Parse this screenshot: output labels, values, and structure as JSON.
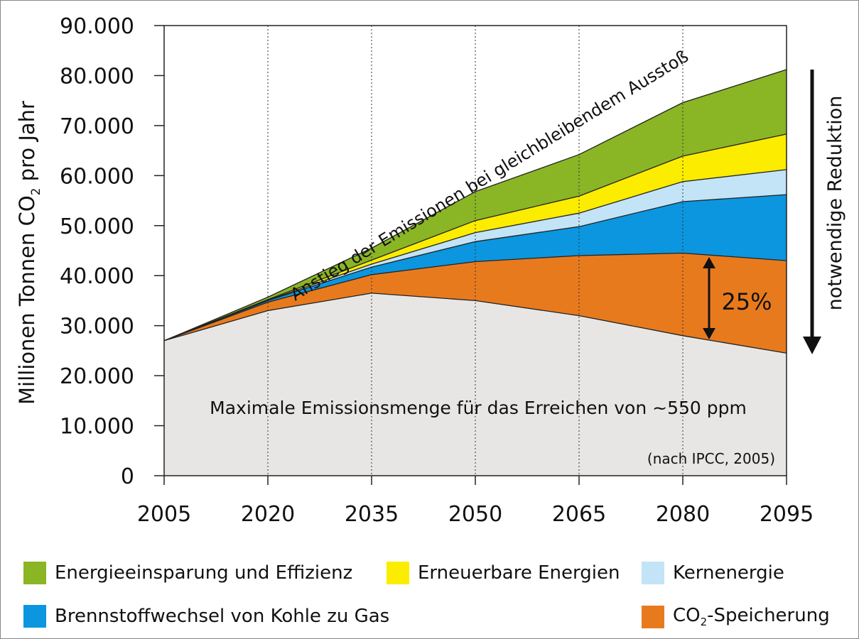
{
  "chart_data": {
    "type": "area",
    "ylabel_main": "Millionen Tonnen CO",
    "ylabel_sub": "2",
    "ylabel_tail": " pro Jahr",
    "ylim": [
      0,
      90000
    ],
    "yticks": [
      0,
      10000,
      20000,
      30000,
      40000,
      50000,
      60000,
      70000,
      80000,
      90000
    ],
    "ytick_labels": [
      "0",
      "10.000",
      "20.000",
      "30.000",
      "40.000",
      "50.000",
      "60.000",
      "70.000",
      "80.000",
      "90.000"
    ],
    "x": [
      2005,
      2020,
      2035,
      2050,
      2065,
      2080,
      2095
    ],
    "xtick_labels": [
      "2005",
      "2020",
      "2035",
      "2050",
      "2065",
      "2080",
      "2095"
    ],
    "xlim": [
      2005,
      2095
    ],
    "grid": "dotted vertical lines at 2020, 2035, 2050, 2065, 2080",
    "base": {
      "label": "Maximale Emissionsmenge für das Erreichen von ~550 ppm",
      "color": "#e8e6e4",
      "values": [
        27000,
        33000,
        36500,
        35000,
        32000,
        28000,
        24500
      ]
    },
    "series": [
      {
        "name": "CO₂-Speicherung",
        "color": "#e87a1e",
        "values": [
          0,
          1700,
          3700,
          7800,
          12000,
          16500,
          18500
        ]
      },
      {
        "name": "Brennstoffwechsel von Kohle zu Gas",
        "color": "#0b96df",
        "values": [
          0,
          300,
          1500,
          4000,
          5800,
          10300,
          13200
        ]
      },
      {
        "name": "Kernenergie",
        "color": "#c3e3f6",
        "values": [
          0,
          100,
          600,
          1800,
          2700,
          4000,
          5000
        ]
      },
      {
        "name": "Erneuerbare Energien",
        "color": "#fbec00",
        "values": [
          0,
          100,
          800,
          2400,
          3400,
          5100,
          7100
        ]
      },
      {
        "name": "Energieeinsparung und Effizienz",
        "color": "#8ab525",
        "values": [
          0,
          500,
          2400,
          5800,
          8300,
          10700,
          12900
        ]
      }
    ],
    "annotations": {
      "trend_text": "Anstieg der Emissionen bei gleichbleibendem Ausstoß",
      "percent": "25%",
      "reduction": "notwendige Reduktion",
      "source": "(nach IPCC, 2005)"
    },
    "legend": "bottom"
  },
  "legend": {
    "items": [
      {
        "label": "Energieeinsparung und Effizienz",
        "color": "#8ab525"
      },
      {
        "label": "Erneuerbare Energien",
        "color": "#fbec00"
      },
      {
        "label": "Kernenergie",
        "color": "#c3e3f6"
      },
      {
        "label": "Brennstoffwechsel von Kohle zu Gas",
        "color": "#0b96df"
      },
      {
        "label_main": "CO",
        "label_sub": "2",
        "label_tail": "-Speicherung",
        "color": "#e87a1e"
      }
    ]
  }
}
